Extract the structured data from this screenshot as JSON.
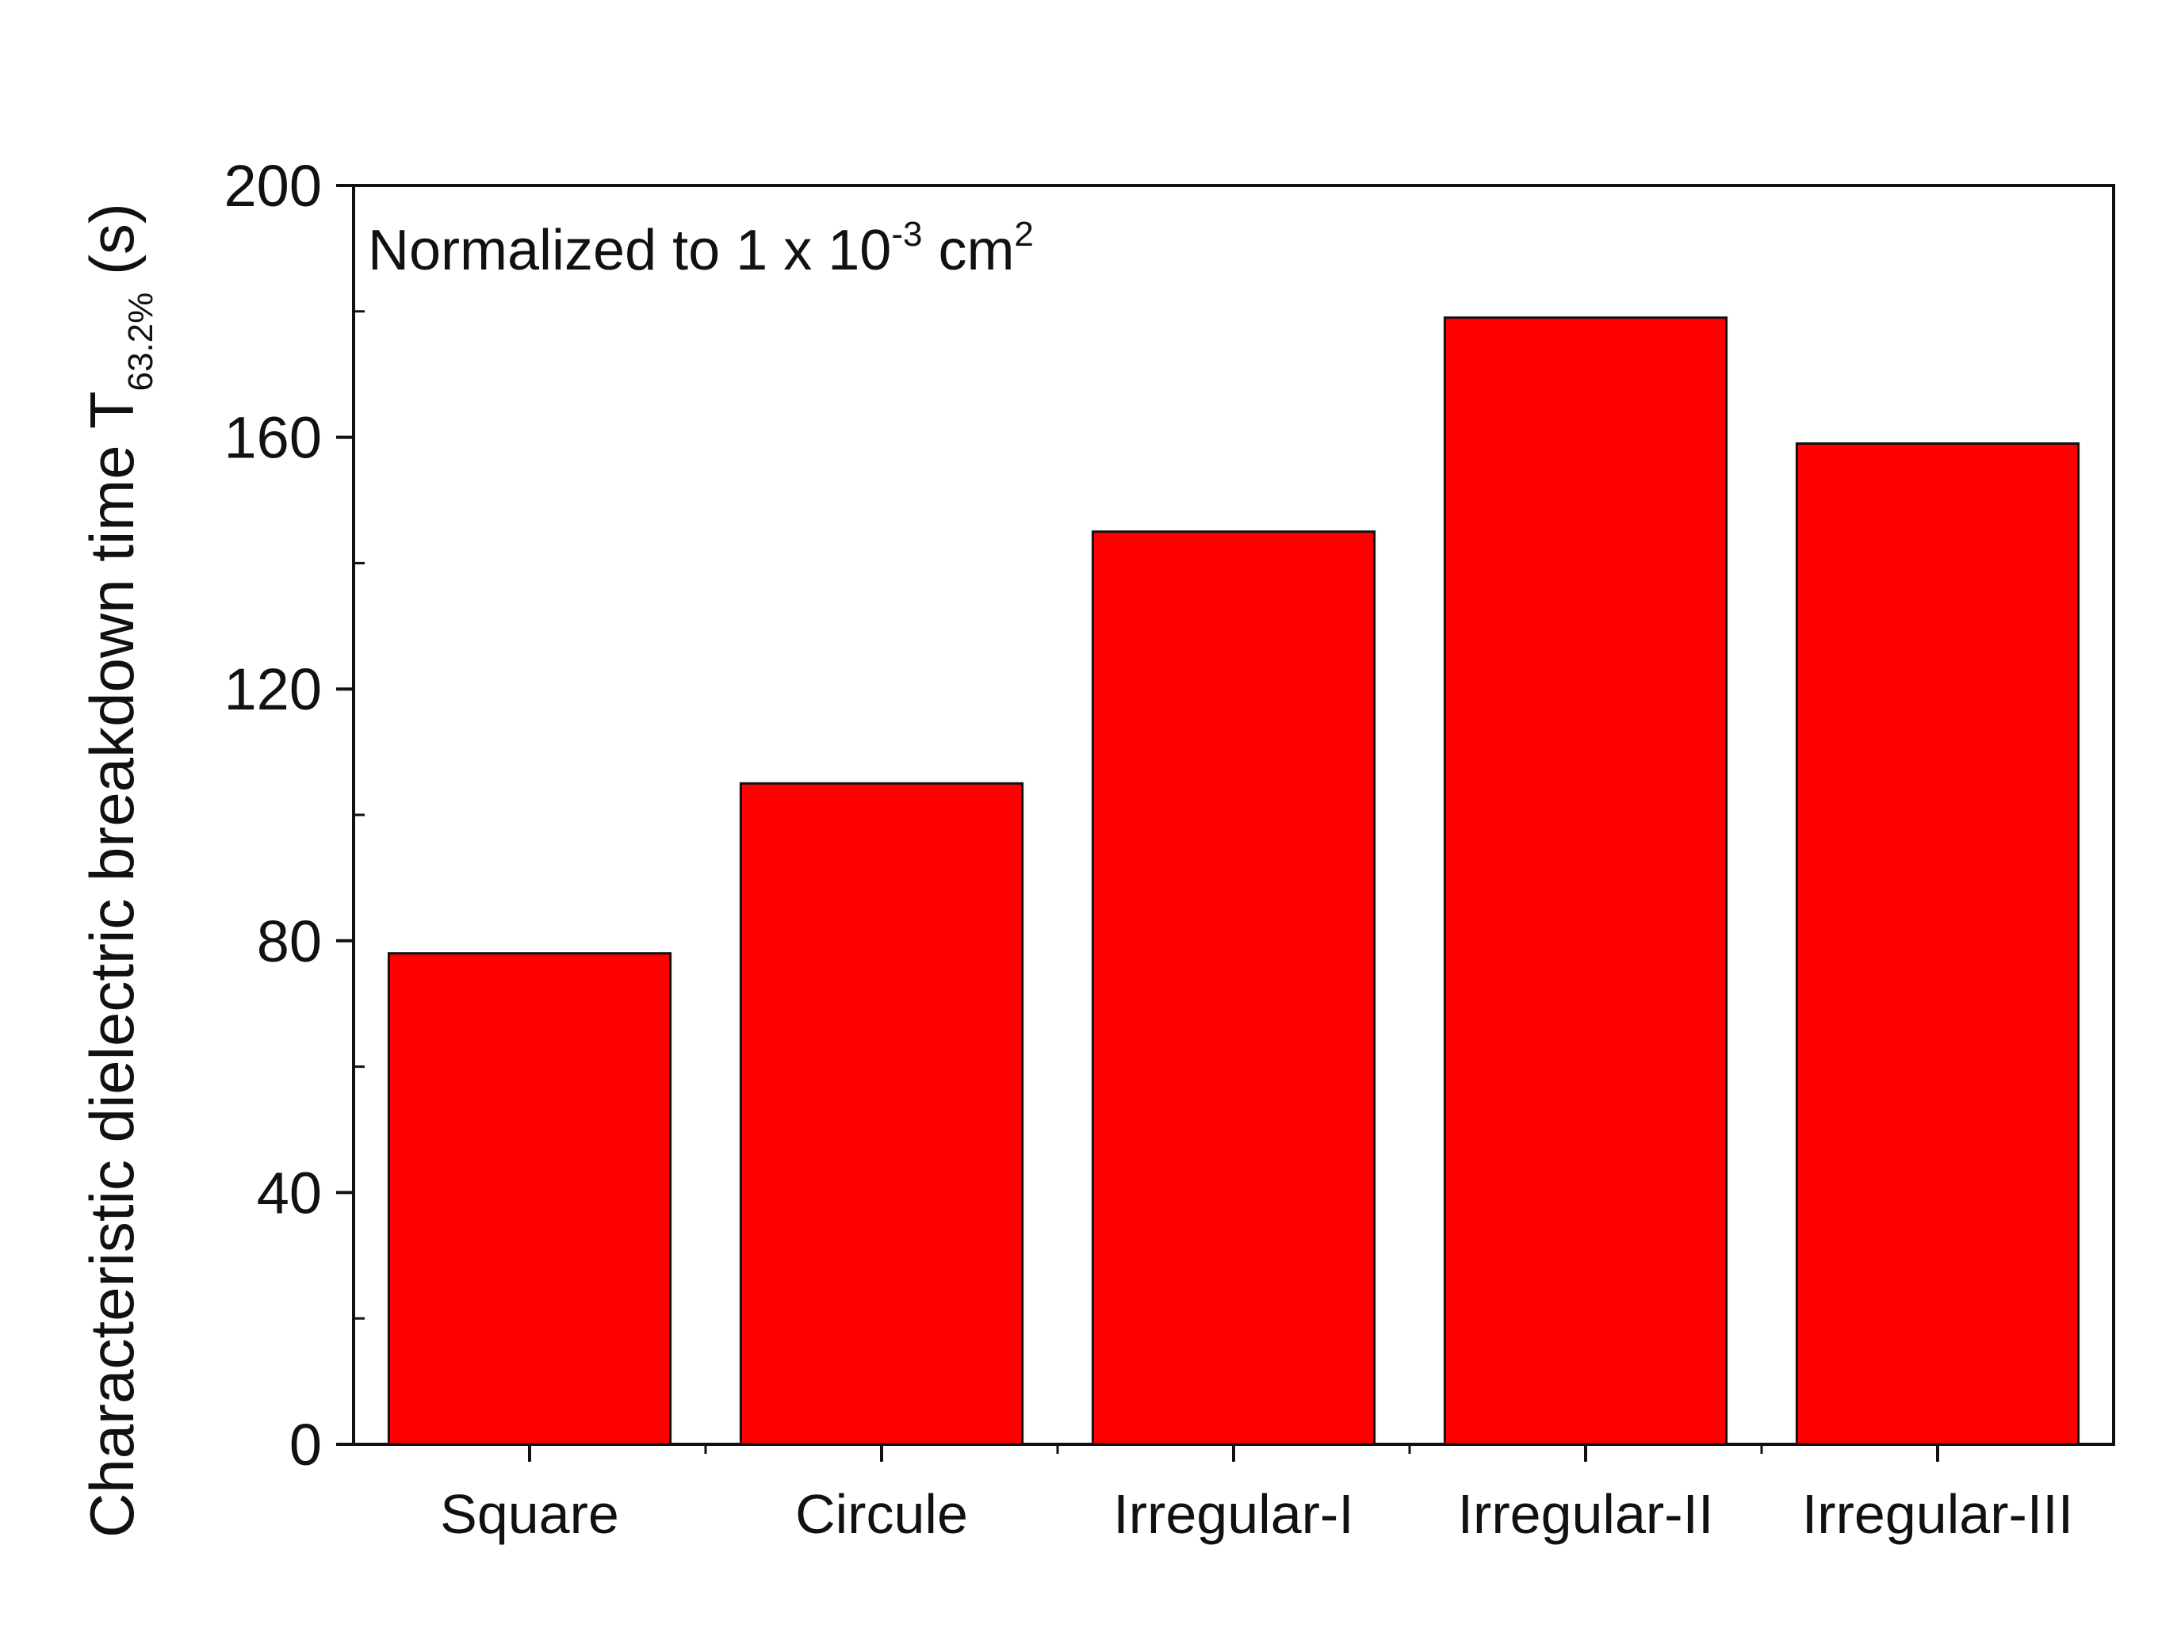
{
  "chart_data": {
    "type": "bar",
    "categories": [
      "Square",
      "Circule",
      "Irregular-I",
      "Irregular-II",
      "Irregular-III"
    ],
    "values": [
      78,
      105,
      145,
      179,
      159
    ],
    "title": "",
    "xlabel": "",
    "ylabel": {
      "main": "Characteristic dielectric breakdown time T",
      "subscript": "63.2%",
      "unit": " (s)"
    },
    "ylim": [
      0,
      200
    ],
    "yticks": [
      0,
      40,
      80,
      120,
      160,
      200
    ],
    "yticks_minor": [
      20,
      60,
      100,
      140,
      180
    ],
    "grid": false,
    "bar_color": "#ff0000",
    "bar_edge_color": "#111111",
    "annotation": {
      "prefix": "Normalized to 1 x 10",
      "exponent": "-3",
      "unit_text": " cm",
      "unit_exponent": "2"
    }
  }
}
